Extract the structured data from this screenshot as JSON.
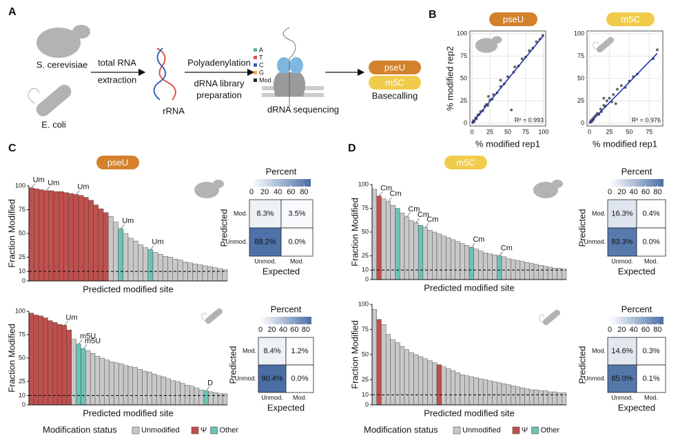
{
  "panel_a": {
    "label": "A",
    "organisms": [
      "S. cerevisiae",
      "E. coli"
    ],
    "step1": [
      "total RNA",
      "extraction"
    ],
    "rrna": "rRNA",
    "step2": [
      "Polyadenylation",
      "dRNA library",
      "preparation"
    ],
    "bases": [
      "A",
      "T",
      "C",
      "G",
      "Mod."
    ],
    "bases_colors": [
      "#5cb89a",
      "#d9534f",
      "#3b63b5",
      "#e8b13a",
      "#222"
    ],
    "sequencing": "dRNA sequencing",
    "models": [
      {
        "name": "pseU",
        "color": "#d4812c"
      },
      {
        "name": "m5C",
        "color": "#f1cc4b"
      }
    ],
    "basecalling": "Basecalling"
  },
  "panel_b": {
    "label": "B",
    "charts": [
      {
        "type": "scatter",
        "title": "pseU",
        "color": "#d4812c",
        "xlabel": "% modified rep1",
        "ylabel": "% modified rep2",
        "annotation": "R² = 0.993",
        "x": [
          1,
          2,
          3,
          5,
          6,
          8,
          10,
          12,
          15,
          18,
          20,
          22,
          25,
          28,
          30,
          35,
          40,
          45,
          50,
          55,
          58,
          60,
          65,
          70,
          75,
          80,
          85,
          90,
          95,
          99,
          23,
          40
        ],
        "y": [
          1,
          3,
          2,
          6,
          5,
          9,
          10,
          13,
          14,
          19,
          21,
          20,
          26,
          27,
          32,
          34,
          41,
          44,
          52,
          15,
          57,
          63,
          64,
          72,
          74,
          81,
          84,
          91,
          94,
          98,
          30,
          48
        ],
        "fit_line": {
          "x": [
            0,
            100
          ],
          "y": [
            0,
            98
          ]
        },
        "xlim": [
          -3,
          103
        ],
        "ylim": [
          -3,
          103
        ],
        "xticks": [
          0,
          25,
          50,
          75,
          100
        ],
        "yticks": [
          0,
          25,
          50,
          75,
          100
        ]
      },
      {
        "type": "scatter",
        "title": "m5C",
        "color": "#f1cc4b",
        "xlabel": "% modified rep1",
        "ylabel": "",
        "annotation": "R² = 0.976",
        "x": [
          1,
          2,
          3,
          4,
          5,
          6,
          8,
          10,
          12,
          14,
          15,
          18,
          20,
          22,
          25,
          28,
          30,
          35,
          40,
          45,
          50,
          55,
          60,
          80,
          85,
          18,
          33
        ],
        "y": [
          1,
          3,
          2,
          5,
          4,
          7,
          9,
          11,
          10,
          16,
          13,
          20,
          19,
          25,
          28,
          24,
          32,
          38,
          42,
          40,
          47,
          52,
          55,
          72,
          82,
          28,
          22
        ],
        "fit_line": {
          "x": [
            0,
            85
          ],
          "y": [
            0,
            78
          ]
        },
        "xlim": [
          -3,
          92
        ],
        "ylim": [
          -3,
          103
        ],
        "xticks": [
          0,
          25,
          50,
          75
        ],
        "yticks": [
          0,
          25,
          50,
          75,
          100
        ]
      }
    ]
  },
  "legend": {
    "title": "Modification status",
    "items": [
      {
        "name": "Unmodified",
        "color": "#c8c8c8"
      },
      {
        "name": "Ψ",
        "color": "#c0504d"
      },
      {
        "name": "Other",
        "color": "#6cc3b4"
      }
    ]
  },
  "panel_c": {
    "label": "C",
    "model": "pseU",
    "charts": [
      {
        "type": "bar",
        "xlabel": "Predicted modified site",
        "ylabel": "Fraction Modified",
        "ylim": [
          0,
          100
        ],
        "yticks": [
          0,
          10,
          25,
          50,
          75,
          100
        ],
        "reference_line": 10,
        "values": [
          98,
          97,
          96,
          95,
          95,
          94,
          94,
          93,
          92,
          91,
          90,
          88,
          85,
          80,
          76,
          72,
          68,
          62,
          55,
          50,
          45,
          42,
          38,
          35,
          33,
          30,
          28,
          26,
          25,
          23,
          22,
          20,
          19,
          18,
          17,
          16,
          15,
          14,
          13,
          12
        ],
        "status": [
          "Ψ",
          "Ψ",
          "Ψ",
          "Ψ",
          "Ψ",
          "Ψ",
          "Ψ",
          "Ψ",
          "Ψ",
          "Ψ",
          "Ψ",
          "Ψ",
          "Ψ",
          "Ψ",
          "Ψ",
          "Ψ",
          "Unmodified",
          "Unmodified",
          "Other",
          "Unmodified",
          "Unmodified",
          "Unmodified",
          "Unmodified",
          "Unmodified",
          "Other",
          "Unmodified",
          "Unmodified",
          "Unmodified",
          "Unmodified",
          "Unmodified",
          "Unmodified",
          "Unmodified",
          "Unmodified",
          "Unmodified",
          "Unmodified",
          "Unmodified",
          "Unmodified",
          "Unmodified",
          "Unmodified",
          "Unmodified"
        ],
        "annotations": [
          {
            "text": "Um",
            "index": 0
          },
          {
            "text": "Um",
            "index": 3
          },
          {
            "text": "Um",
            "index": 9
          },
          {
            "text": "Um",
            "index": 18
          },
          {
            "text": "Um",
            "index": 24
          }
        ],
        "heatmap": {
          "title": "Percent",
          "colorbar_ticks": [
            0,
            20,
            40,
            60,
            80
          ],
          "colorbar_lim": [
            0,
            90
          ],
          "row_label": "Predicted",
          "col_label": "Expected",
          "rows": [
            "Mod.",
            "Unmod."
          ],
          "cols": [
            "Unmod.",
            "Mod."
          ],
          "values": [
            [
              8.3,
              3.5
            ],
            [
              88.2,
              0.0
            ]
          ],
          "value_labels": [
            [
              "8.3%",
              "3.5%"
            ],
            [
              "88.2%",
              "0.0%"
            ]
          ]
        }
      },
      {
        "type": "bar",
        "xlabel": "Predicted modified site",
        "ylabel": "Fraction Modified",
        "ylim": [
          0,
          100
        ],
        "yticks": [
          0,
          10,
          25,
          50,
          75,
          100
        ],
        "reference_line": 10,
        "values": [
          98,
          96,
          95,
          93,
          90,
          88,
          86,
          85,
          80,
          70,
          65,
          60,
          58,
          55,
          52,
          50,
          48,
          46,
          45,
          44,
          42,
          41,
          40,
          38,
          36,
          35,
          33,
          31,
          30,
          28,
          26,
          25,
          23,
          21,
          20,
          18,
          16,
          15,
          14,
          13,
          12,
          12
        ],
        "status": [
          "Ψ",
          "Ψ",
          "Ψ",
          "Ψ",
          "Ψ",
          "Ψ",
          "Ψ",
          "Ψ",
          "Ψ",
          "Unmodified",
          "Other",
          "Other",
          "Unmodified",
          "Unmodified",
          "Unmodified",
          "Unmodified",
          "Unmodified",
          "Unmodified",
          "Unmodified",
          "Unmodified",
          "Unmodified",
          "Unmodified",
          "Unmodified",
          "Unmodified",
          "Unmodified",
          "Unmodified",
          "Unmodified",
          "Unmodified",
          "Unmodified",
          "Unmodified",
          "Unmodified",
          "Unmodified",
          "Unmodified",
          "Unmodified",
          "Unmodified",
          "Unmodified",
          "Unmodified",
          "Other",
          "Unmodified",
          "Unmodified",
          "Unmodified",
          "Unmodified"
        ],
        "annotations": [
          {
            "text": "Um",
            "index": 7
          },
          {
            "text": "m5U",
            "index": 10
          },
          {
            "text": "m5U",
            "index": 11
          },
          {
            "text": "D",
            "index": 37
          }
        ],
        "heatmap": {
          "title": "Percent",
          "colorbar_ticks": [
            0,
            20,
            40,
            60,
            80
          ],
          "colorbar_lim": [
            0,
            90
          ],
          "row_label": "Predicted",
          "col_label": "Expected",
          "rows": [
            "Mod.",
            "Unmod."
          ],
          "cols": [
            "Unmod.",
            "Mod."
          ],
          "values": [
            [
              8.4,
              1.2
            ],
            [
              90.4,
              0.0
            ]
          ],
          "value_labels": [
            [
              "8.4%",
              "1.2%"
            ],
            [
              "90.4%",
              "0.0%"
            ]
          ]
        }
      }
    ]
  },
  "panel_d": {
    "label": "D",
    "model": "m5C",
    "charts": [
      {
        "type": "bar",
        "xlabel": "Predicted modified site",
        "ylabel": "Fraction Modified",
        "ylim": [
          0,
          100
        ],
        "yticks": [
          0,
          10,
          25,
          50,
          75,
          100
        ],
        "reference_line": 10,
        "values": [
          95,
          88,
          85,
          82,
          78,
          75,
          70,
          66,
          62,
          60,
          57,
          55,
          52,
          50,
          48,
          46,
          44,
          42,
          40,
          38,
          36,
          34,
          32,
          30,
          28,
          27,
          26,
          25,
          24,
          22,
          21,
          20,
          19,
          18,
          17,
          16,
          15,
          14,
          13,
          12,
          12,
          11
        ],
        "status": [
          "Unmodified",
          "Ψ",
          "Unmodified",
          "Unmodified",
          "Unmodified",
          "Other",
          "Unmodified",
          "Unmodified",
          "Unmodified",
          "Unmodified",
          "Other",
          "Unmodified",
          "Unmodified",
          "Unmodified",
          "Unmodified",
          "Unmodified",
          "Unmodified",
          "Unmodified",
          "Unmodified",
          "Unmodified",
          "Unmodified",
          "Other",
          "Unmodified",
          "Unmodified",
          "Unmodified",
          "Unmodified",
          "Unmodified",
          "Other",
          "Unmodified",
          "Unmodified",
          "Unmodified",
          "Unmodified",
          "Unmodified",
          "Unmodified",
          "Unmodified",
          "Unmodified",
          "Unmodified",
          "Unmodified",
          "Unmodified",
          "Unmodified",
          "Unmodified",
          "Unmodified"
        ],
        "annotations": [
          {
            "text": "Cm",
            "index": 1
          },
          {
            "text": "Cm",
            "index": 3
          },
          {
            "text": "Cm",
            "index": 7
          },
          {
            "text": "Cm",
            "index": 9
          },
          {
            "text": "Cm",
            "index": 11
          },
          {
            "text": "Cm",
            "index": 21
          },
          {
            "text": "Cm",
            "index": 27
          }
        ],
        "heatmap": {
          "title": "Percent",
          "colorbar_ticks": [
            0,
            20,
            40,
            60,
            80
          ],
          "colorbar_lim": [
            0,
            90
          ],
          "row_label": "Predicted",
          "col_label": "Expected",
          "rows": [
            "Mod.",
            "Unmod."
          ],
          "cols": [
            "Unmod.",
            "Mod."
          ],
          "values": [
            [
              16.3,
              0.4
            ],
            [
              83.3,
              0.0
            ]
          ],
          "value_labels": [
            [
              "16.3%",
              "0.4%"
            ],
            [
              "83.3%",
              "0.0%"
            ]
          ]
        }
      },
      {
        "type": "bar",
        "xlabel": "Predicted modified site",
        "ylabel": "Fraction Modified",
        "ylim": [
          0,
          100
        ],
        "yticks": [
          0,
          10,
          25,
          50,
          75,
          100
        ],
        "reference_line": 10,
        "values": [
          95,
          85,
          80,
          70,
          65,
          62,
          58,
          55,
          52,
          50,
          48,
          46,
          44,
          42,
          40,
          38,
          36,
          34,
          32,
          30,
          29,
          28,
          27,
          26,
          25,
          24,
          23,
          22,
          21,
          20,
          19,
          18,
          17,
          16,
          15,
          15,
          14,
          14,
          13,
          13,
          12,
          12
        ],
        "status": [
          "Unmodified",
          "Ψ",
          "Unmodified",
          "Unmodified",
          "Unmodified",
          "Unmodified",
          "Unmodified",
          "Unmodified",
          "Unmodified",
          "Unmodified",
          "Unmodified",
          "Unmodified",
          "Unmodified",
          "Unmodified",
          "Ψ",
          "Unmodified",
          "Unmodified",
          "Unmodified",
          "Unmodified",
          "Unmodified",
          "Unmodified",
          "Unmodified",
          "Unmodified",
          "Unmodified",
          "Unmodified",
          "Unmodified",
          "Unmodified",
          "Unmodified",
          "Unmodified",
          "Unmodified",
          "Unmodified",
          "Unmodified",
          "Unmodified",
          "Unmodified",
          "Unmodified",
          "Unmodified",
          "Unmodified",
          "Unmodified",
          "Unmodified",
          "Unmodified",
          "Unmodified",
          "Unmodified"
        ],
        "annotations": [],
        "heatmap": {
          "title": "Percent",
          "colorbar_ticks": [
            0,
            20,
            40,
            60,
            80
          ],
          "colorbar_lim": [
            0,
            90
          ],
          "row_label": "Predicted",
          "col_label": "Expected",
          "rows": [
            "Mod.",
            "Unmod."
          ],
          "cols": [
            "Unmod.",
            "Mod."
          ],
          "values": [
            [
              14.6,
              0.3
            ],
            [
              85.0,
              0.1
            ]
          ],
          "value_labels": [
            [
              "14.6%",
              "0.3%"
            ],
            [
              "85.0%",
              "0.1%"
            ]
          ]
        }
      }
    ]
  }
}
